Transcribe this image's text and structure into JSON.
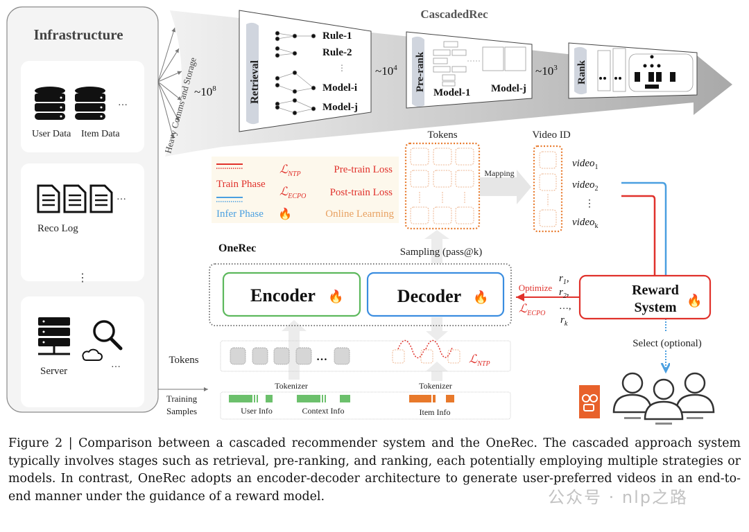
{
  "infrastructure": {
    "title": "Infrastructure",
    "data_labels": [
      "User Data",
      "Item Data"
    ],
    "ellipsis": "…",
    "log_label": "Reco Log",
    "vertical_dots": "⋮",
    "server_label": "Server",
    "fan_label": "Heavy Comms and Storage"
  },
  "cascaded": {
    "title": "CascadedRec",
    "counts": [
      {
        "base": "~10",
        "exp": "8"
      },
      {
        "base": "~10",
        "exp": "4"
      },
      {
        "base": "~10",
        "exp": "3"
      }
    ],
    "retrieval": {
      "label": "Retrieval",
      "items": [
        "Rule-1",
        "Rule-2",
        "⋮",
        "Model-i",
        "Model-j"
      ]
    },
    "prerank": {
      "label": "Pre-rank",
      "items": [
        "Model-1",
        "Model-j"
      ]
    },
    "rank": {
      "label": "Rank"
    }
  },
  "legend": {
    "train_phase": "Train Phase",
    "infer_phase": "Infer Phase",
    "ntp_symbol": "ℒ",
    "ntp_sub": "NTP",
    "ecpo_symbol": "ℒ",
    "ecpo_sub": "ECPO",
    "pretrain_loss": "Pre-train Loss",
    "posttrain_loss": "Post-train Loss",
    "online_learning": "Online Learning",
    "fire_icon": "🔥"
  },
  "onerec": {
    "title": "OneRec",
    "tokens_label": "Tokens",
    "mapping": "Mapping",
    "video_id_label": "Video ID",
    "videos": [
      {
        "base": "video",
        "sub": "1"
      },
      {
        "base": "video",
        "sub": "2"
      },
      {
        "base": "⋮",
        "sub": ""
      },
      {
        "base": "video",
        "sub": "k"
      }
    ],
    "sampling": "Sampling (pass@k)",
    "encoder": "Encoder",
    "decoder": "Decoder",
    "reward_line1": "Reward",
    "reward_line2": "System",
    "optimize": "Optimize",
    "rewards": [
      {
        "base": "r",
        "sub": "1",
        "suffix": ","
      },
      {
        "base": "r",
        "sub": "2",
        "suffix": ","
      },
      {
        "base": "…,",
        "sub": "",
        "suffix": ""
      },
      {
        "base": "r",
        "sub": "k",
        "suffix": ""
      }
    ],
    "select": "Select (optional)",
    "tokens_row_label": "Tokens",
    "token_ellipsis": "…",
    "tokenizer": "Tokenizer",
    "training_samples_1": "Training",
    "training_samples_2": "Samples",
    "user_info": "User Info",
    "context_info": "Context Info",
    "item_info": "Item Info"
  },
  "colors": {
    "train": "#e0312b",
    "infer": "#4a9fe0",
    "encoder": "#5cb85c",
    "decoder": "#3a8de0",
    "orange": "#e8792b",
    "legend_bg": "#fdf8ec"
  },
  "caption": "Figure 2 | Comparison between a cascaded recommender system and the OneRec. The cascaded approach system typically involves stages such as retrieval, pre-ranking, and ranking, each potentially employing multiple strategies or models. In contrast, OneRec adopts an encoder-decoder architecture to generate user-preferred videos in an end-to-end manner under the guidance of a reward model.",
  "watermark": "公众号 · nlp之路"
}
